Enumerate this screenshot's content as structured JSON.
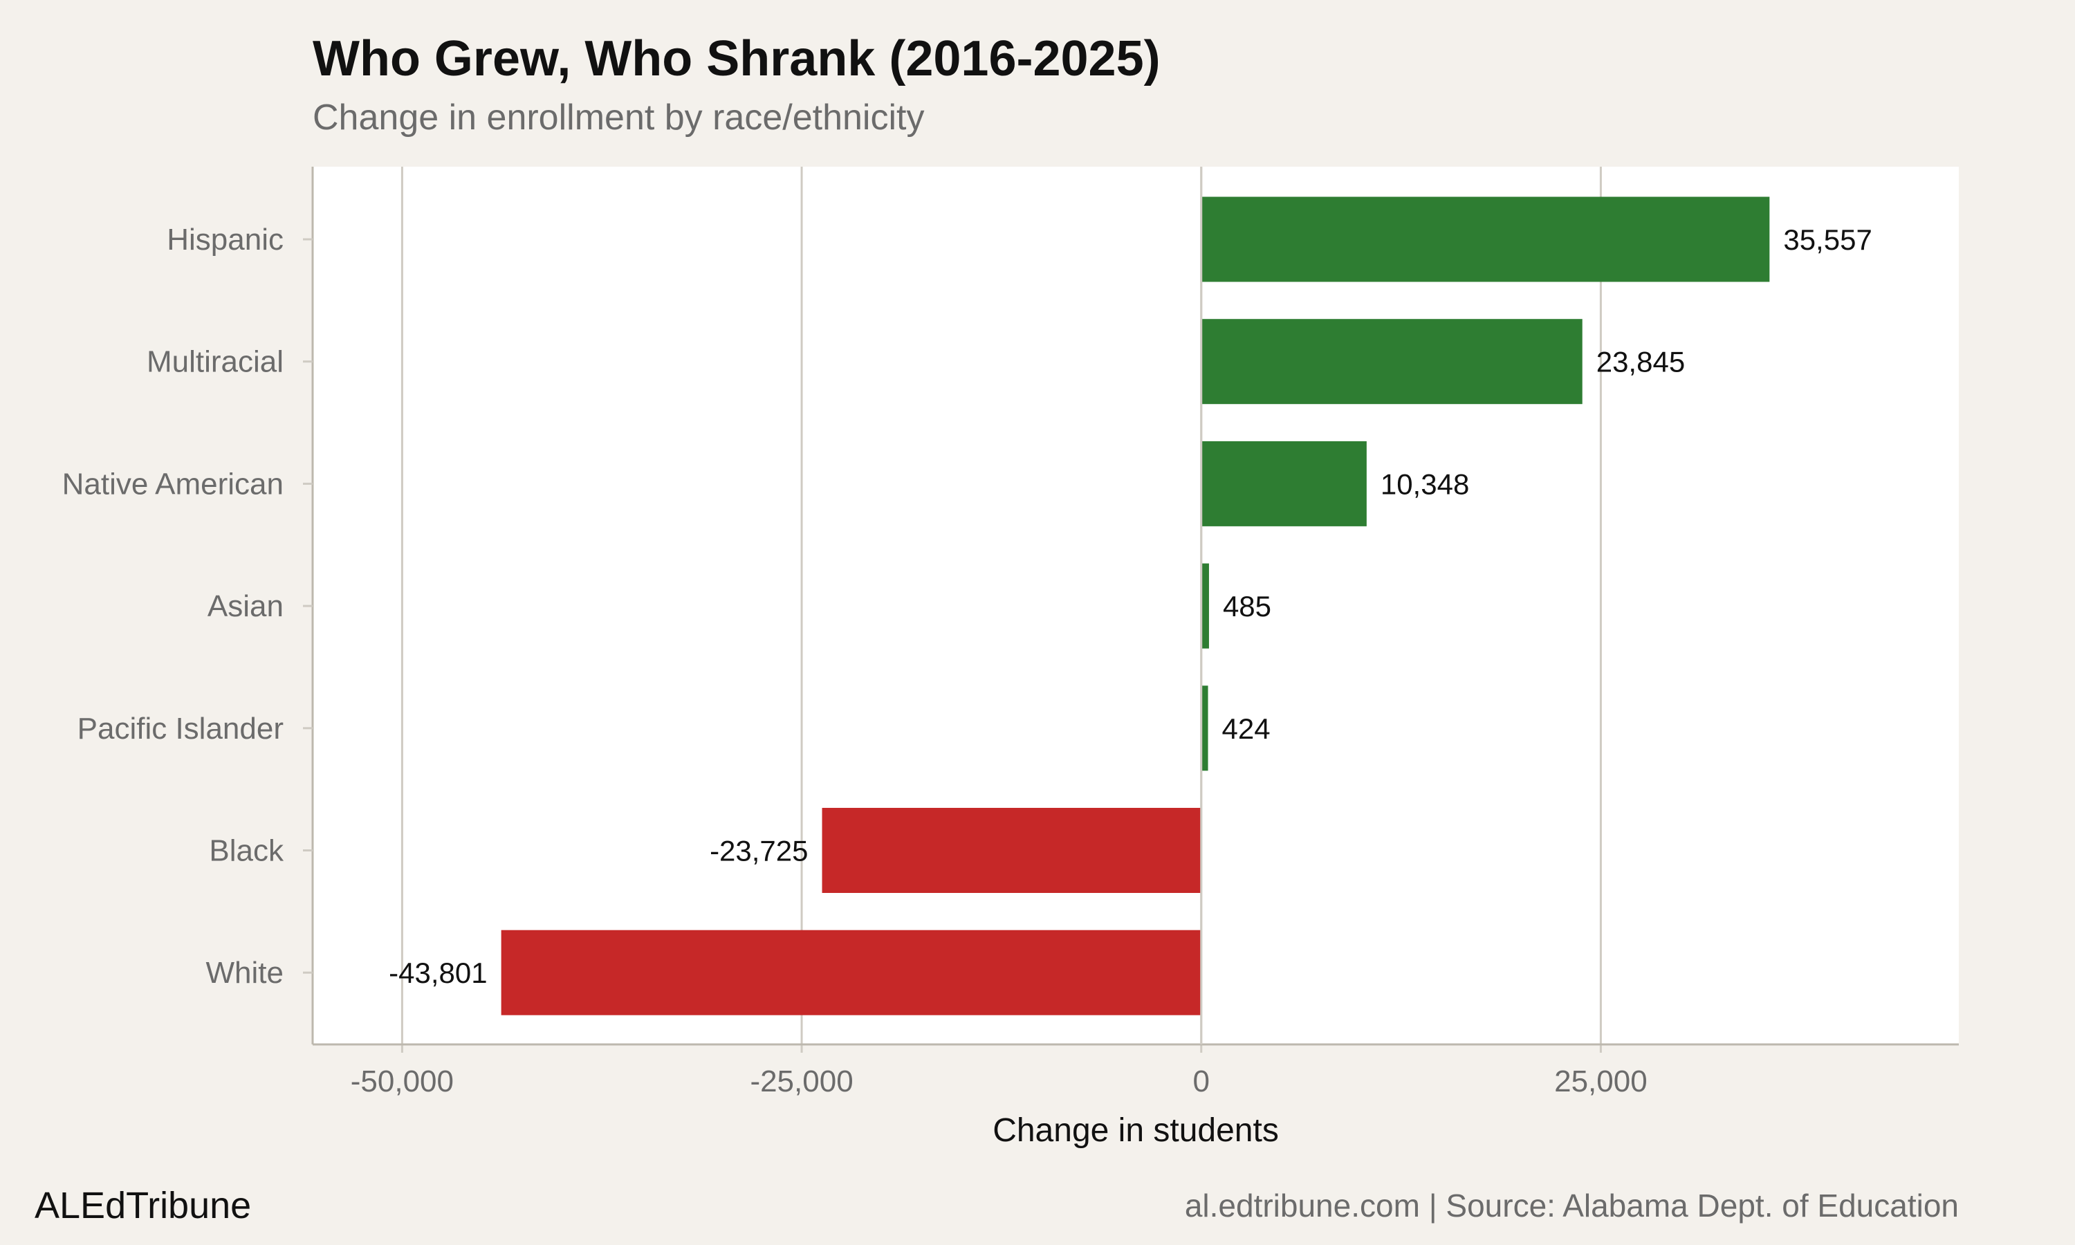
{
  "title": "Who Grew, Who Shrank (2016-2025)",
  "subtitle": "Change in enrollment by race/ethnicity",
  "brand": "ALEdTribune",
  "source": "al.edtribune.com | Source: Alabama Dept. of Education",
  "colors": {
    "positive": "#2e7d32",
    "negative": "#c62828",
    "background": "#f4f1ec",
    "panel": "#ffffff",
    "grid": "#cfcbc3"
  },
  "chart_data": {
    "type": "bar",
    "orientation": "horizontal",
    "categories": [
      "Hispanic",
      "Multiracial",
      "Native American",
      "Asian",
      "Pacific Islander",
      "Black",
      "White"
    ],
    "values": [
      35557,
      23845,
      10348,
      485,
      424,
      -23725,
      -43801
    ],
    "data_labels": [
      "35,557",
      "23,845",
      "10,348",
      "485",
      "424",
      "-23,725",
      "-43,801"
    ],
    "xlabel": "Change in students",
    "ylabel": "",
    "xlim": [
      -55600,
      47400
    ],
    "xticks": [
      -50000,
      -25000,
      0,
      25000
    ],
    "xtick_labels": [
      "-50,000",
      "-25,000",
      "0",
      "25,000"
    ],
    "grid": true,
    "legend": "none"
  }
}
